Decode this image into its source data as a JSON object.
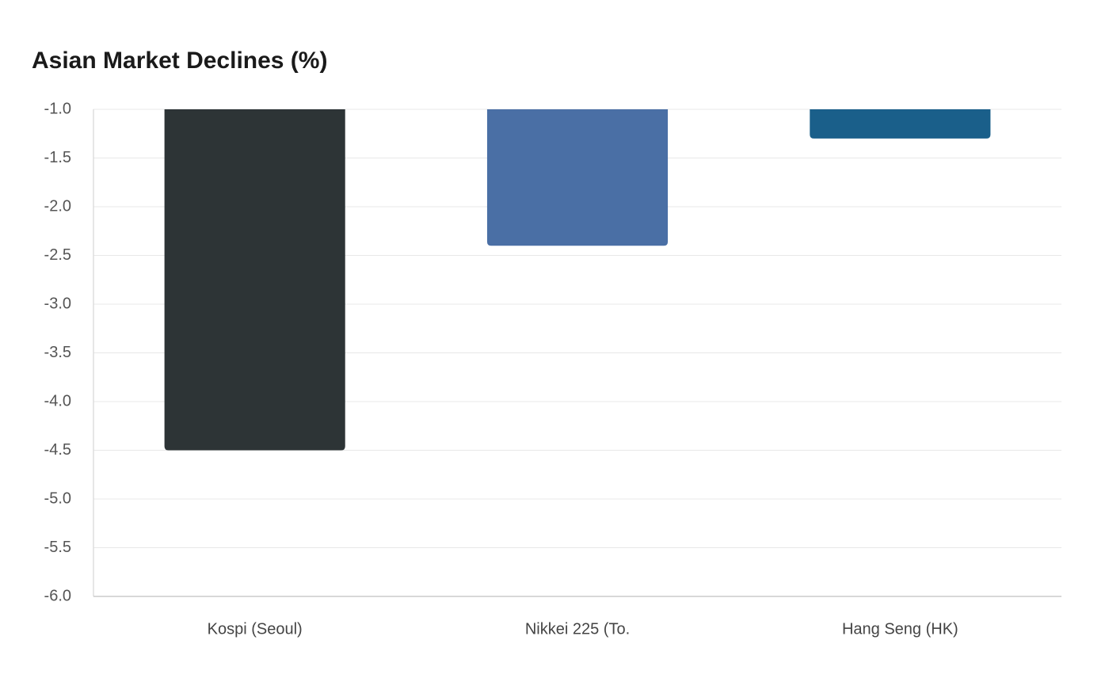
{
  "chart_data": {
    "type": "bar",
    "title": "Asian Market Declines (%)",
    "xlabel": "",
    "ylabel": "",
    "categories": [
      "Kospi (Seoul)",
      "Nikkei 225 (To.",
      "Hang Seng (HK)"
    ],
    "values": [
      -4.5,
      -2.4,
      -1.3
    ],
    "colors": [
      "#2d3436",
      "#4a6fa5",
      "#1a5f8a"
    ],
    "ylim": [
      -6.0,
      -1.0
    ],
    "yticks": [
      "-1.0",
      "-1.5",
      "-2.0",
      "-2.5",
      "-3.0",
      "-3.5",
      "-4.0",
      "-4.5",
      "-5.0",
      "-5.5",
      "-6.0"
    ],
    "grid": true,
    "legend": "none"
  }
}
